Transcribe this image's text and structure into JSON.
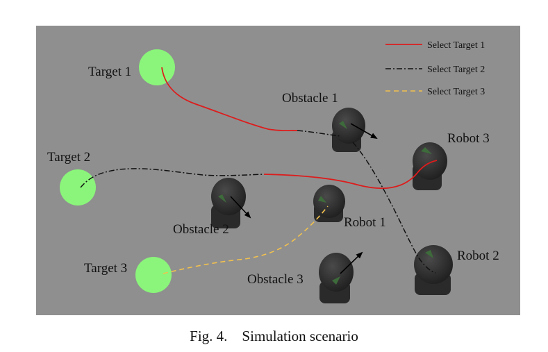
{
  "caption": "Fig. 4.    Simulation scenario",
  "legend": [
    {
      "label": "Select Target 1",
      "color": "#dd1c1c"
    },
    {
      "label": "Select Target 2",
      "color": "#111111"
    },
    {
      "label": "Select Target 3",
      "color": "#f2c14e"
    }
  ],
  "targets": [
    {
      "label": "Target 1"
    },
    {
      "label": "Target 2"
    },
    {
      "label": "Target 3"
    }
  ],
  "obstacles": [
    {
      "label": "Obstacle 1"
    },
    {
      "label": "Obstacle 2"
    },
    {
      "label": "Obstacle 3"
    }
  ],
  "robots": [
    {
      "label": "Robot 1"
    },
    {
      "label": "Robot 2"
    },
    {
      "label": "Robot 3"
    }
  ],
  "colors": {
    "background": "#8f8f8f",
    "target": "#8af57a",
    "robot_body": "#2b2b2b"
  }
}
